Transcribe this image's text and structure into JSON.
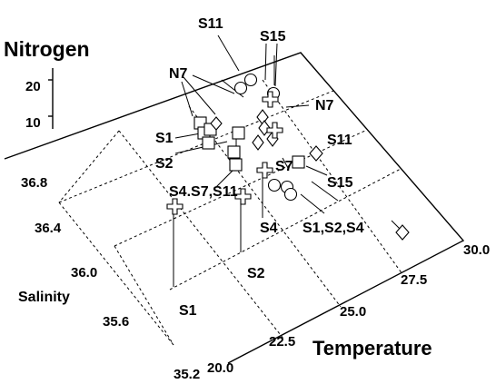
{
  "chart_data": {
    "type": "scatter",
    "projection": "3d",
    "axes": {
      "x": {
        "label": "Temperature",
        "ticks": [
          "20.0",
          "22.5",
          "25.0",
          "27.5",
          "30.0"
        ],
        "range": [
          20,
          30
        ]
      },
      "y": {
        "label": "Salinity",
        "ticks": [
          "35.2",
          "35.6",
          "36.0",
          "36.4",
          "36.8"
        ],
        "range": [
          35.2,
          36.8
        ]
      },
      "z": {
        "label": "Nitrogen",
        "ticks": [
          "10",
          "20"
        ],
        "range": [
          0,
          20
        ]
      }
    },
    "grid": true,
    "marker_types": [
      "square",
      "circle",
      "diamond",
      "cross"
    ],
    "annotations": [
      "S11",
      "S15",
      "N7",
      "N7",
      "S1",
      "S2",
      "S11",
      "S7",
      "S15",
      "S4.S7,S11",
      "S4",
      "S1,S2,S4",
      "S2",
      "S1"
    ]
  }
}
